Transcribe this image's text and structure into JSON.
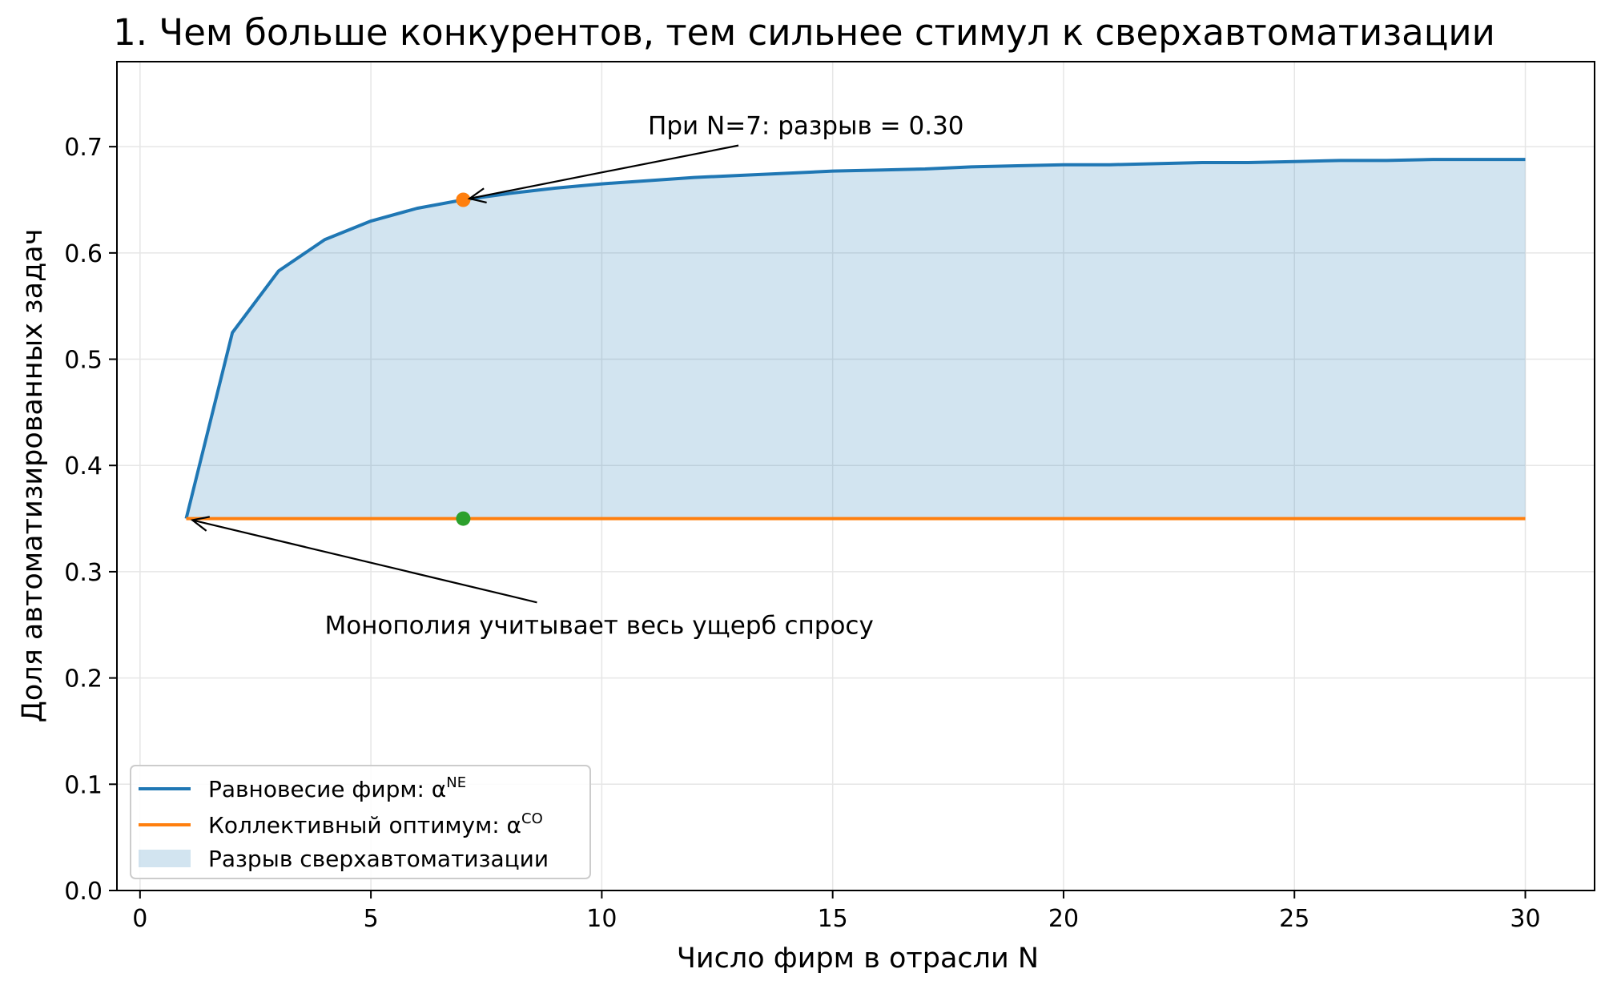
{
  "chart_data": {
    "type": "line",
    "title": "1. Чем больше конкурентов, тем сильнее стимул к сверхавтоматизации",
    "xlabel": "Число фирм в отрасли N",
    "ylabel": "Доля автоматизированных задач",
    "xlim": [
      -0.5,
      31.5
    ],
    "ylim": [
      0.0,
      0.78
    ],
    "xticks": [
      0,
      5,
      10,
      15,
      20,
      25,
      30
    ],
    "yticks": [
      0.0,
      0.1,
      0.2,
      0.3,
      0.4,
      0.5,
      0.6,
      0.7
    ],
    "xtick_labels": [
      "0",
      "5",
      "10",
      "15",
      "20",
      "25",
      "30"
    ],
    "ytick_labels": [
      "0.0",
      "0.1",
      "0.2",
      "0.3",
      "0.4",
      "0.5",
      "0.6",
      "0.7"
    ],
    "grid": true,
    "legend_position": "lower-left",
    "x": [
      1,
      2,
      3,
      4,
      5,
      6,
      7,
      8,
      9,
      10,
      11,
      12,
      13,
      14,
      15,
      16,
      17,
      18,
      19,
      20,
      21,
      22,
      23,
      24,
      25,
      26,
      27,
      28,
      29,
      30
    ],
    "series": [
      {
        "name": "Равновесие фирм: α^NE",
        "legend_base": "Равновесие фирм: α",
        "legend_sup": "NE",
        "color": "#1f77b4",
        "values": [
          0.35,
          0.525,
          0.583,
          0.6125,
          0.63,
          0.642,
          0.65,
          0.656,
          0.661,
          0.665,
          0.668,
          0.671,
          0.673,
          0.675,
          0.677,
          0.678,
          0.679,
          0.681,
          0.682,
          0.683,
          0.683,
          0.684,
          0.685,
          0.685,
          0.686,
          0.687,
          0.687,
          0.688,
          0.688,
          0.688
        ]
      },
      {
        "name": "Коллективный оптимум: α^CO",
        "legend_base": "Коллективный оптимум: α",
        "legend_sup": "CO",
        "color": "#ff7f0e",
        "values": [
          0.35,
          0.35,
          0.35,
          0.35,
          0.35,
          0.35,
          0.35,
          0.35,
          0.35,
          0.35,
          0.35,
          0.35,
          0.35,
          0.35,
          0.35,
          0.35,
          0.35,
          0.35,
          0.35,
          0.35,
          0.35,
          0.35,
          0.35,
          0.35,
          0.35,
          0.35,
          0.35,
          0.35,
          0.35,
          0.35
        ]
      }
    ],
    "fill": {
      "name": "Разрыв сверхавтоматизации",
      "color": "#1f77b4",
      "opacity": 0.2
    },
    "markers": [
      {
        "x": 7,
        "y": 0.65,
        "color": "#ff7f0e"
      },
      {
        "x": 7,
        "y": 0.35,
        "color": "#2ca02c"
      }
    ],
    "annotations": [
      {
        "text": "При N=7: разрыв = 0.30",
        "x": 7,
        "y": 0.65,
        "text_x": 11,
        "text_y": 0.72
      },
      {
        "text": "Монополия учитывает весь ущерб спросу",
        "x": 1,
        "y": 0.35,
        "text_x": 4,
        "text_y": 0.25
      }
    ]
  }
}
